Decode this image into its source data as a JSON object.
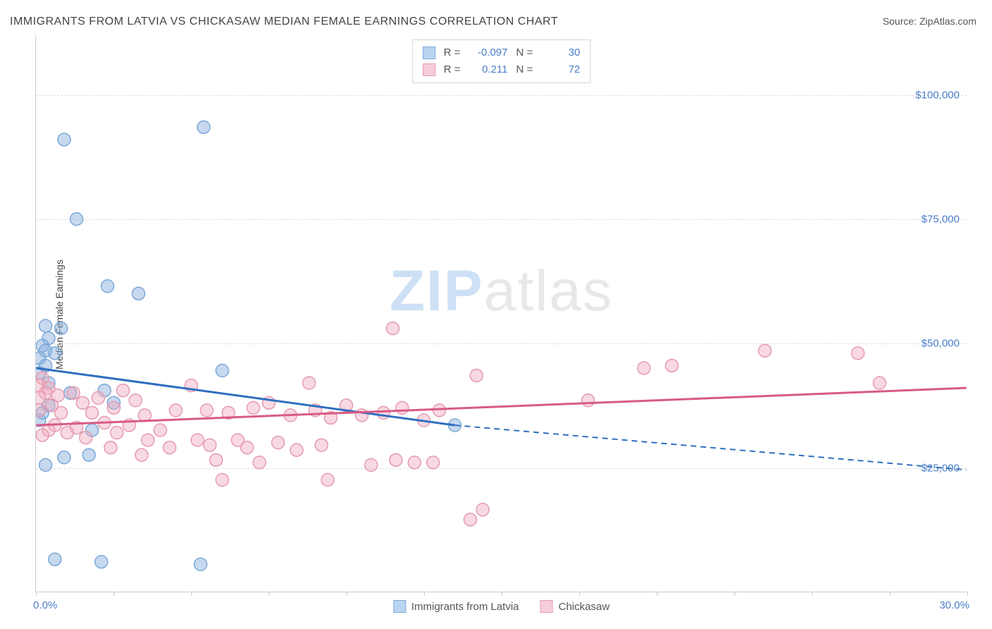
{
  "title": "IMMIGRANTS FROM LATVIA VS CHICKASAW MEDIAN FEMALE EARNINGS CORRELATION CHART",
  "source_label": "Source: ZipAtlas.com",
  "ylabel": "Median Female Earnings",
  "watermark_bold": "ZIP",
  "watermark_light": "atlas",
  "chart": {
    "type": "scatter",
    "xlim": [
      0,
      30
    ],
    "ylim": [
      0,
      112000
    ],
    "x_min_label": "0.0%",
    "x_max_label": "30.0%",
    "xtick_step": 2.5,
    "ygrid": [
      25000,
      50000,
      75000,
      100000
    ],
    "ygrid_labels": [
      "$25,000",
      "$50,000",
      "$75,000",
      "$100,000"
    ],
    "background_color": "#ffffff",
    "grid_color": "#dddddd",
    "axis_color": "#cccccc",
    "tick_label_color": "#4a7ec9",
    "series": [
      {
        "name": "Immigrants from Latvia",
        "color_fill": "rgba(130,170,220,0.45)",
        "color_stroke": "#7aa8d8",
        "line_color": "#2f6fc0",
        "swatch_fill": "#b9d4ef",
        "swatch_border": "#7aa8d8",
        "R": "-0.097",
        "N": "30",
        "marker_radius": 9,
        "regression": {
          "x1": 0,
          "y1": 45000,
          "x2": 13.5,
          "y2": 33500,
          "extend_x": 30,
          "extend_y": 24500
        },
        "points": [
          {
            "x": 0.9,
            "y": 91000
          },
          {
            "x": 5.4,
            "y": 93500
          },
          {
            "x": 1.3,
            "y": 75000
          },
          {
            "x": 2.3,
            "y": 61500
          },
          {
            "x": 3.3,
            "y": 60000
          },
          {
            "x": 0.3,
            "y": 53500
          },
          {
            "x": 0.8,
            "y": 53000
          },
          {
            "x": 0.4,
            "y": 51000
          },
          {
            "x": 0.2,
            "y": 49500
          },
          {
            "x": 0.3,
            "y": 48500
          },
          {
            "x": 0.6,
            "y": 48000
          },
          {
            "x": 0.1,
            "y": 47000
          },
          {
            "x": 0.3,
            "y": 45500
          },
          {
            "x": 0.1,
            "y": 44000
          },
          {
            "x": 6.0,
            "y": 44500
          },
          {
            "x": 0.4,
            "y": 42000
          },
          {
            "x": 2.2,
            "y": 40500
          },
          {
            "x": 1.1,
            "y": 40000
          },
          {
            "x": 2.5,
            "y": 38000
          },
          {
            "x": 0.4,
            "y": 37500
          },
          {
            "x": 0.2,
            "y": 36000
          },
          {
            "x": 0.1,
            "y": 34500
          },
          {
            "x": 1.8,
            "y": 32500
          },
          {
            "x": 13.5,
            "y": 33500
          },
          {
            "x": 0.9,
            "y": 27000
          },
          {
            "x": 1.7,
            "y": 27500
          },
          {
            "x": 0.3,
            "y": 25500
          },
          {
            "x": 0.6,
            "y": 6500
          },
          {
            "x": 2.1,
            "y": 6000
          },
          {
            "x": 5.3,
            "y": 5500
          }
        ]
      },
      {
        "name": "Chickasaw",
        "color_fill": "rgba(240,170,190,0.45)",
        "color_stroke": "#e59ab0",
        "line_color": "#d85a85",
        "swatch_fill": "#f6cdd9",
        "swatch_border": "#e59ab0",
        "R": "0.211",
        "N": "72",
        "marker_radius": 9,
        "regression": {
          "x1": 0,
          "y1": 33500,
          "x2": 30,
          "y2": 41000
        },
        "points": [
          {
            "x": 11.5,
            "y": 53000
          },
          {
            "x": 23.5,
            "y": 48500
          },
          {
            "x": 26.5,
            "y": 48000
          },
          {
            "x": 19.6,
            "y": 45000
          },
          {
            "x": 20.5,
            "y": 45500
          },
          {
            "x": 14.2,
            "y": 43500
          },
          {
            "x": 27.2,
            "y": 42000
          },
          {
            "x": 0.2,
            "y": 43000
          },
          {
            "x": 0.1,
            "y": 41500
          },
          {
            "x": 0.4,
            "y": 41000
          },
          {
            "x": 0.3,
            "y": 40000
          },
          {
            "x": 0.1,
            "y": 39000
          },
          {
            "x": 8.8,
            "y": 42000
          },
          {
            "x": 5.0,
            "y": 41500
          },
          {
            "x": 2.8,
            "y": 40500
          },
          {
            "x": 1.2,
            "y": 40000
          },
          {
            "x": 0.7,
            "y": 39500
          },
          {
            "x": 2.0,
            "y": 39000
          },
          {
            "x": 3.2,
            "y": 38500
          },
          {
            "x": 1.5,
            "y": 38000
          },
          {
            "x": 0.5,
            "y": 37500
          },
          {
            "x": 2.5,
            "y": 37000
          },
          {
            "x": 17.8,
            "y": 38500
          },
          {
            "x": 4.5,
            "y": 36500
          },
          {
            "x": 0.8,
            "y": 36000
          },
          {
            "x": 1.8,
            "y": 36000
          },
          {
            "x": 3.5,
            "y": 35500
          },
          {
            "x": 5.5,
            "y": 36500
          },
          {
            "x": 6.2,
            "y": 36000
          },
          {
            "x": 7.0,
            "y": 37000
          },
          {
            "x": 7.5,
            "y": 38000
          },
          {
            "x": 8.2,
            "y": 35500
          },
          {
            "x": 9.0,
            "y": 36500
          },
          {
            "x": 9.5,
            "y": 35000
          },
          {
            "x": 10.0,
            "y": 37500
          },
          {
            "x": 10.5,
            "y": 35500
          },
          {
            "x": 11.2,
            "y": 36000
          },
          {
            "x": 11.8,
            "y": 37000
          },
          {
            "x": 12.5,
            "y": 34500
          },
          {
            "x": 13.0,
            "y": 36500
          },
          {
            "x": 2.2,
            "y": 34000
          },
          {
            "x": 0.6,
            "y": 33500
          },
          {
            "x": 1.3,
            "y": 33000
          },
          {
            "x": 3.0,
            "y": 33500
          },
          {
            "x": 0.4,
            "y": 32500
          },
          {
            "x": 1.0,
            "y": 32000
          },
          {
            "x": 2.6,
            "y": 32000
          },
          {
            "x": 4.0,
            "y": 32500
          },
          {
            "x": 0.2,
            "y": 31500
          },
          {
            "x": 1.6,
            "y": 31000
          },
          {
            "x": 3.6,
            "y": 30500
          },
          {
            "x": 5.2,
            "y": 30500
          },
          {
            "x": 6.5,
            "y": 30500
          },
          {
            "x": 7.8,
            "y": 30000
          },
          {
            "x": 2.4,
            "y": 29000
          },
          {
            "x": 4.3,
            "y": 29000
          },
          {
            "x": 5.6,
            "y": 29500
          },
          {
            "x": 6.8,
            "y": 29000
          },
          {
            "x": 8.4,
            "y": 28500
          },
          {
            "x": 9.2,
            "y": 29500
          },
          {
            "x": 3.4,
            "y": 27500
          },
          {
            "x": 5.8,
            "y": 26500
          },
          {
            "x": 7.2,
            "y": 26000
          },
          {
            "x": 10.8,
            "y": 25500
          },
          {
            "x": 11.6,
            "y": 26500
          },
          {
            "x": 12.2,
            "y": 26000
          },
          {
            "x": 6.0,
            "y": 22500
          },
          {
            "x": 9.4,
            "y": 22500
          },
          {
            "x": 12.8,
            "y": 26000
          },
          {
            "x": 14.0,
            "y": 14500
          },
          {
            "x": 14.4,
            "y": 16500
          },
          {
            "x": 0.1,
            "y": 36500
          }
        ]
      }
    ]
  }
}
